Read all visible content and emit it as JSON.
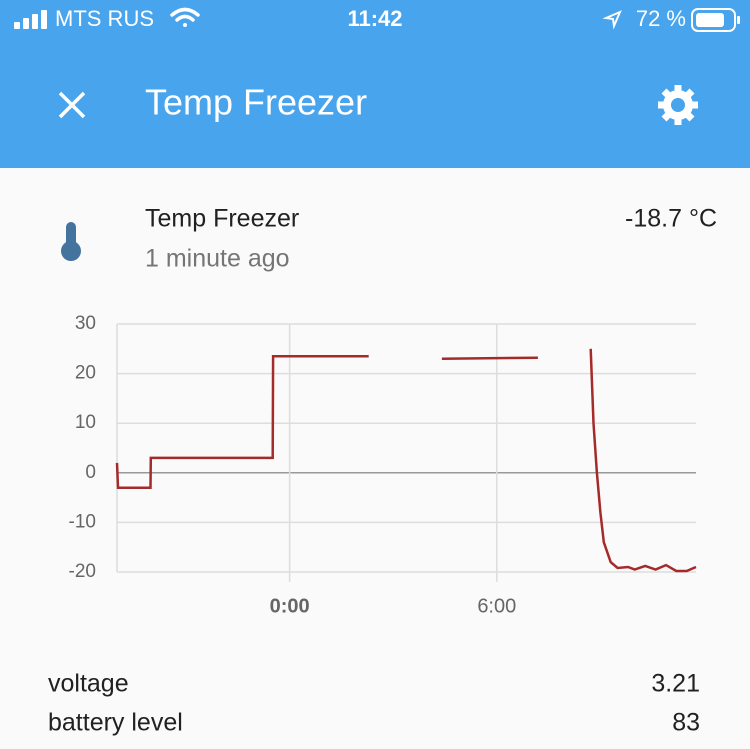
{
  "status_bar": {
    "carrier": "MTS RUS",
    "time": "11:42",
    "battery": "72 %"
  },
  "header": {
    "title": "Temp Freezer"
  },
  "entity": {
    "name": "Temp Freezer",
    "updated": "1 minute ago",
    "state": "-18.7 °C"
  },
  "chart_data": {
    "type": "line",
    "x": [
      -5.0,
      -4.97,
      -4.03,
      -4.02,
      -0.49,
      -0.48,
      2.29,
      3.3,
      4.41,
      7.19,
      8.0,
      8.72,
      8.8,
      8.9,
      9.0,
      9.1,
      9.3,
      9.5,
      9.8,
      10.0,
      10.3,
      10.6,
      10.9,
      11.2,
      11.5,
      11.77
    ],
    "values": [
      2,
      -3,
      -3,
      3,
      3,
      23.5,
      23.5,
      null,
      23,
      23.2,
      null,
      25,
      10,
      0,
      -8,
      -14,
      -18,
      -19.2,
      -19,
      -19.5,
      -18.8,
      -19.5,
      -18.6,
      -19.8,
      -19.8,
      -19
    ],
    "color": "#a52a2a",
    "xlim": [
      -5.0,
      11.77
    ],
    "xticks": [
      {
        "value": 0,
        "label": "0:00"
      },
      {
        "value": 6,
        "label": "6:00"
      }
    ],
    "ylim": [
      -20,
      30
    ],
    "yticks": [
      -20,
      -10,
      0,
      10,
      20,
      30
    ],
    "grid": true
  },
  "attributes": [
    {
      "name": "voltage",
      "value": 3.21
    },
    {
      "name": "battery level",
      "value": 83
    }
  ]
}
